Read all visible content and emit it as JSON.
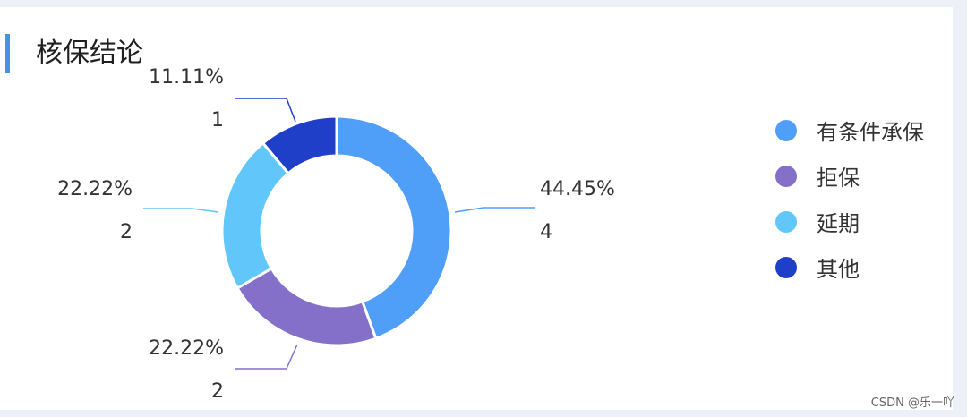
{
  "card": {
    "title": "核保结论",
    "watermark": "CSDN @乐一吖"
  },
  "chart_data": {
    "type": "pie",
    "donut": true,
    "legend_position": "right",
    "slices": [
      {
        "name": "有条件承保",
        "value": 4,
        "percent": "44.45%",
        "color": "#4f9ef7"
      },
      {
        "name": "拒保",
        "value": 2,
        "percent": "22.22%",
        "color": "#8470c8"
      },
      {
        "name": "延期",
        "value": 2,
        "percent": "22.22%",
        "color": "#61c7fa"
      },
      {
        "name": "其他",
        "value": 1,
        "percent": "11.11%",
        "color": "#1f3fc9"
      }
    ]
  }
}
